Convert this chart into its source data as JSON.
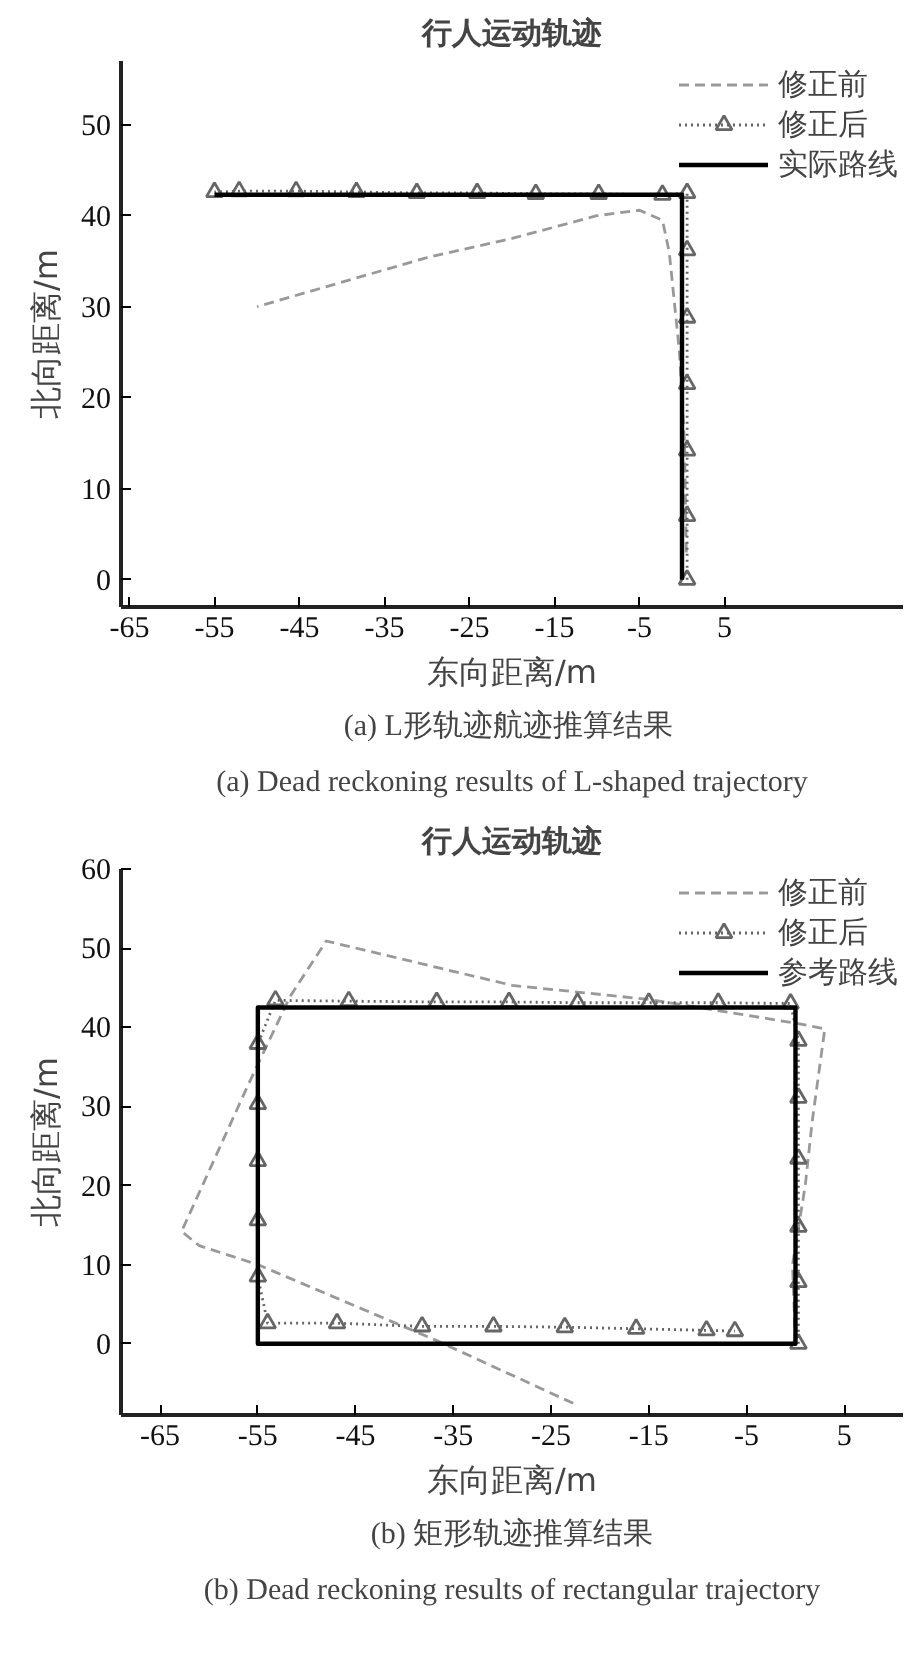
{
  "chart_data": [
    {
      "type": "line",
      "title": "行人运动轨迹",
      "xlabel": "东向距离/m",
      "ylabel": "北向距离/m",
      "annotations": [
        "(a)  L形轨迹航迹推算结果",
        "(a) Dead reckoning results of L-shaped trajectory"
      ],
      "xlim": [
        -66,
        26
      ],
      "ylim": [
        -3,
        57
      ],
      "xticks": [
        -65,
        -55,
        -45,
        -35,
        -25,
        -15,
        -5,
        5
      ],
      "yticks": [
        0,
        10,
        20,
        30,
        40,
        50
      ],
      "grid": false,
      "legend": "top right",
      "series": [
        {
          "name": "修正前",
          "color": "#999999",
          "line_style": "dashed",
          "marker": "none",
          "x": [
            0.5,
            0.3,
            -0.3,
            -1.5,
            -2.3,
            -5,
            -10,
            -20,
            -30,
            -50
          ],
          "values": [
            3,
            15,
            25,
            36,
            39.5,
            40.6,
            40,
            37.5,
            35.4,
            30
          ]
        },
        {
          "name": "修正后",
          "color": "#666666",
          "line_style": "dotted",
          "marker": "triangle",
          "x": [
            0.6,
            0.6,
            0.6,
            0.6,
            0.6,
            0.6,
            0.6,
            -2.3,
            -9.8,
            -17.2,
            -24.1,
            -31.2,
            -38.3,
            -45.4,
            -52.1,
            -55
          ],
          "values": [
            0,
            7,
            14.2,
            21.5,
            28.8,
            36.2,
            42.5,
            42.3,
            42.4,
            42.4,
            42.5,
            42.5,
            42.6,
            42.7,
            42.7,
            42.6
          ]
        },
        {
          "name": "实际路线",
          "color": "#000000",
          "line_style": "solid",
          "marker": "none",
          "x": [
            0,
            0,
            -55
          ],
          "values": [
            0,
            42.3,
            42.3
          ]
        }
      ]
    },
    {
      "type": "line",
      "title": "行人运动轨迹",
      "xlabel": "东向距离/m",
      "ylabel": "北向距离/m",
      "annotations": [
        "(b) 矩形轨迹推算结果",
        "(b) Dead reckoning results of rectangular trajectory"
      ],
      "xlim": [
        -69,
        11
      ],
      "ylim": [
        -9,
        60
      ],
      "xticks": [
        -65,
        -55,
        -45,
        -35,
        -25,
        -15,
        -5,
        5
      ],
      "yticks": [
        0,
        10,
        20,
        30,
        40,
        50,
        60
      ],
      "grid": false,
      "legend": "top right",
      "series": [
        {
          "name": "修正前",
          "color": "#999999",
          "line_style": "dashed",
          "marker": "none",
          "x": [
            0,
            -0.3,
            1.0,
            1.7,
            3,
            0.1,
            -14.9,
            -29,
            -48,
            -51.7,
            -56,
            -62.8,
            -61,
            -55,
            -36.7,
            -22.6
          ],
          "values": [
            0,
            10,
            20,
            28,
            39.8,
            40.5,
            43.5,
            45.3,
            50.9,
            43.9,
            32.7,
            14.2,
            12.4,
            10,
            0.4,
            -7.6
          ]
        },
        {
          "name": "修正后",
          "color": "#666666",
          "line_style": "dotted",
          "marker": "triangle",
          "x": [
            0.3,
            0.3,
            0.3,
            0.3,
            0.3,
            0.3,
            -0.5,
            -7.9,
            -15,
            -22.3,
            -29.3,
            -36.7,
            -45.7,
            -53.2,
            -55,
            -55,
            -55,
            -55,
            -55,
            -54,
            -46.9,
            -38.2,
            -30.9,
            -23.6,
            -16.3,
            -9.1,
            -6.2
          ],
          "values": [
            0,
            7.8,
            14.8,
            23.4,
            31.1,
            38.3,
            43,
            43.1,
            43.1,
            43.1,
            43.2,
            43.2,
            43.3,
            43.4,
            37.9,
            30.3,
            23.1,
            15.6,
            8.5,
            2.6,
            2.6,
            2.2,
            2.2,
            2.1,
            1.9,
            1.7,
            1.6
          ]
        },
        {
          "name": "参考路线",
          "color": "#000000",
          "line_style": "solid",
          "marker": "none",
          "x": [
            -25,
            0,
            0,
            -55,
            -55,
            -20
          ],
          "values": [
            0,
            0,
            42.5,
            42.5,
            0,
            0
          ]
        }
      ]
    }
  ]
}
